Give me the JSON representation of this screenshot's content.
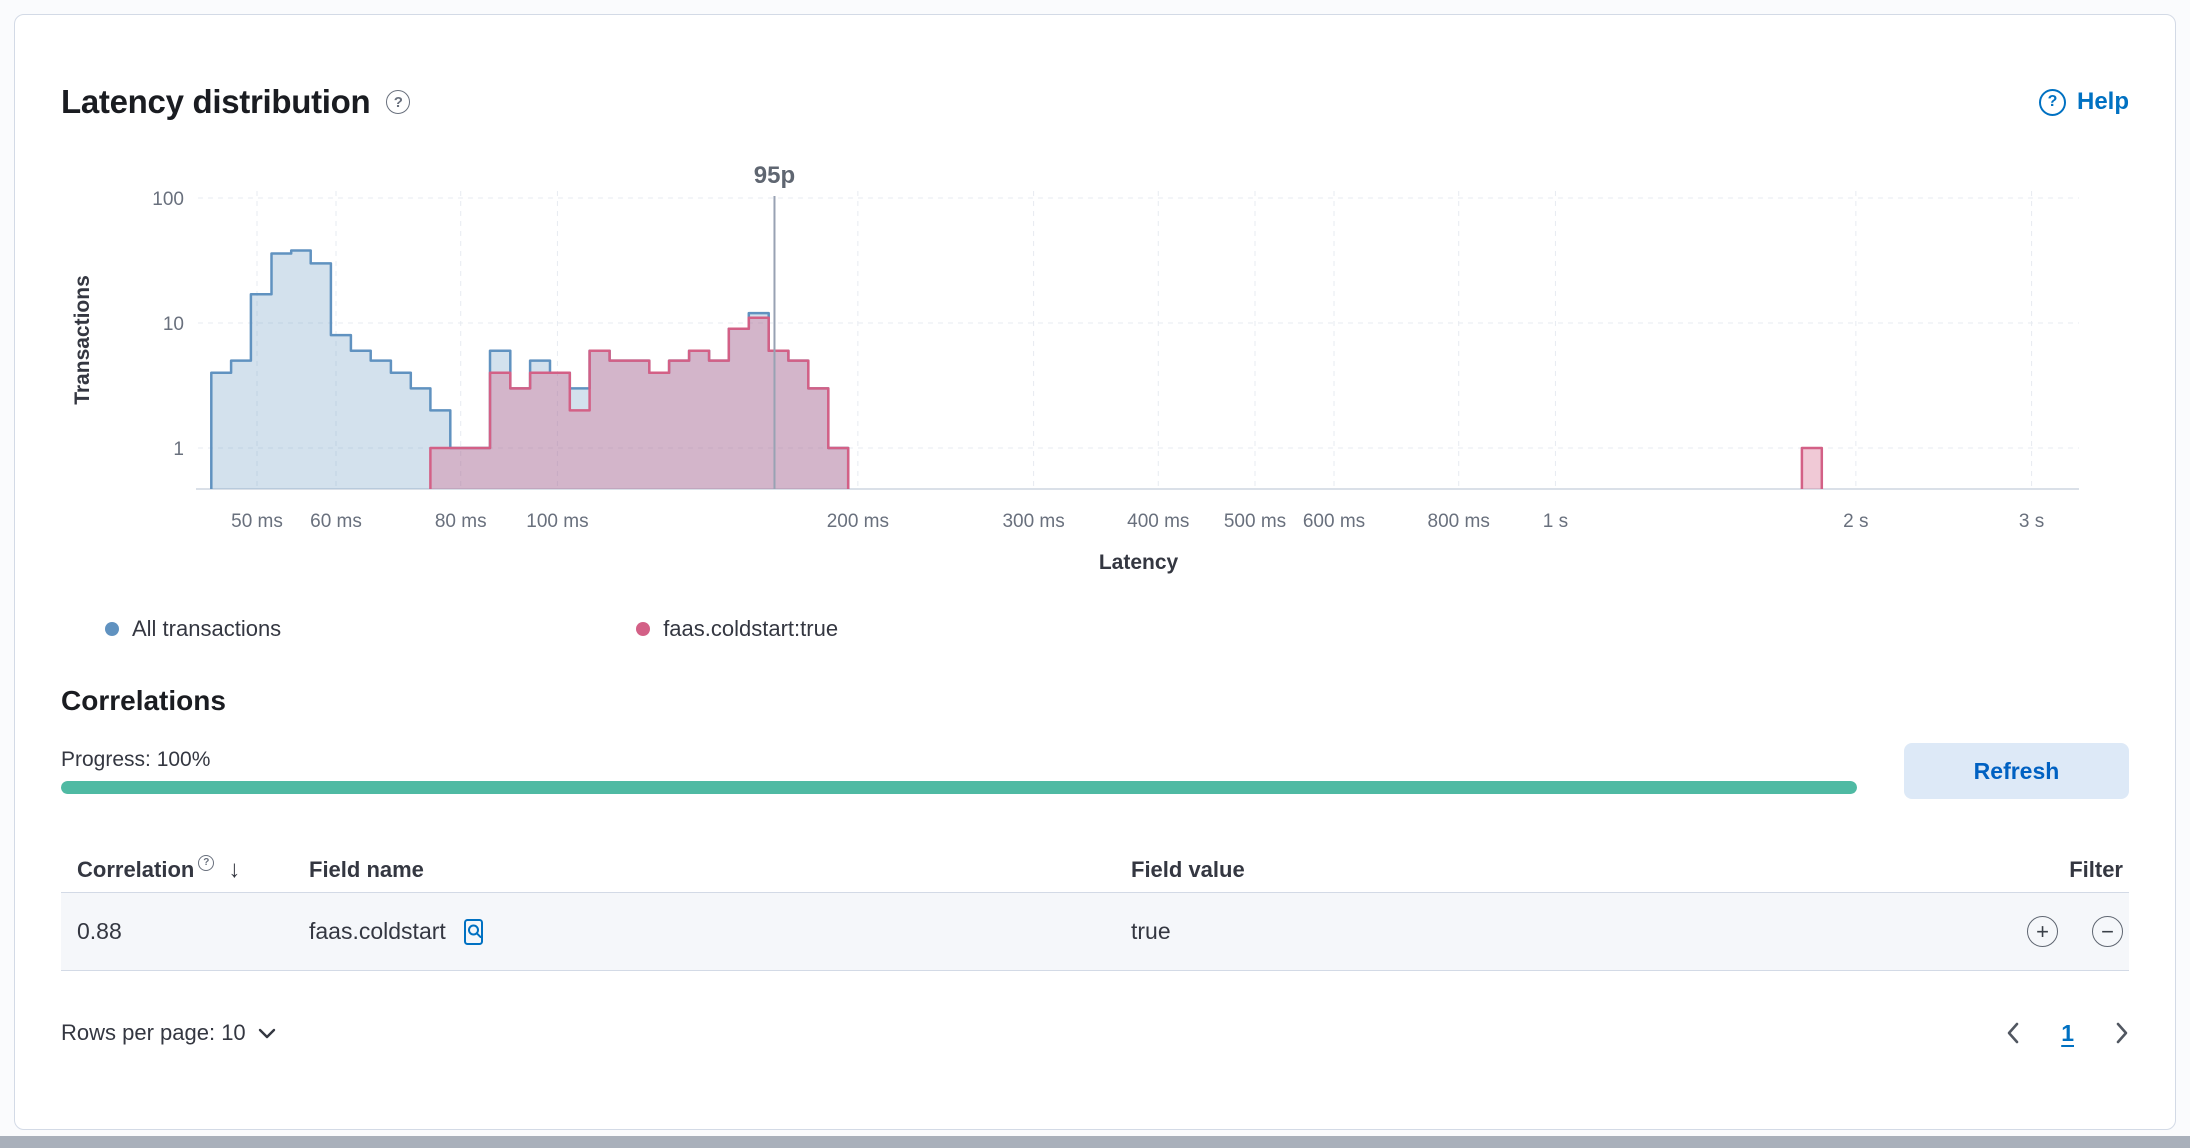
{
  "header": {
    "title": "Latency distribution",
    "help_label": "Help"
  },
  "chart_data": {
    "type": "histogram",
    "title": "Latency distribution",
    "xlabel": "Latency",
    "ylabel": "Transactions",
    "x_scale": "log",
    "y_scale": "log",
    "grid": true,
    "legend_position": "bottom",
    "y_ticks": [
      1,
      10,
      100
    ],
    "x_ticks": [
      {
        "ms": 50,
        "label": "50 ms"
      },
      {
        "ms": 60,
        "label": "60 ms"
      },
      {
        "ms": 80,
        "label": "80 ms"
      },
      {
        "ms": 100,
        "label": "100 ms"
      },
      {
        "ms": 200,
        "label": "200 ms"
      },
      {
        "ms": 300,
        "label": "300 ms"
      },
      {
        "ms": 400,
        "label": "400 ms"
      },
      {
        "ms": 500,
        "label": "500 ms"
      },
      {
        "ms": 600,
        "label": "600 ms"
      },
      {
        "ms": 800,
        "label": "800 ms"
      },
      {
        "ms": 1000,
        "label": "1 s"
      },
      {
        "ms": 2000,
        "label": "2 s"
      },
      {
        "ms": 3000,
        "label": "3 s"
      }
    ],
    "percentile_marker": {
      "label": "95p",
      "ms": 165
    },
    "series": [
      {
        "name": "All transactions",
        "color": "#6092C0",
        "fill": "rgba(96,146,192,0.28)",
        "bars": [
          [
            45,
            47.1,
            4
          ],
          [
            47.1,
            49.3,
            5
          ],
          [
            49.3,
            51.7,
            17
          ],
          [
            51.7,
            54.1,
            36
          ],
          [
            54.1,
            56.6,
            38
          ],
          [
            56.6,
            59.3,
            30
          ],
          [
            59.3,
            62.1,
            8
          ],
          [
            62.1,
            65,
            6
          ],
          [
            65,
            68.1,
            5
          ],
          [
            68.1,
            71.3,
            4
          ],
          [
            71.3,
            74.6,
            3
          ],
          [
            74.6,
            78.1,
            2
          ],
          [
            78.1,
            81.8,
            1
          ],
          [
            81.8,
            85.6,
            1
          ],
          [
            85.6,
            89.7,
            6
          ],
          [
            89.7,
            93.9,
            3
          ],
          [
            93.9,
            98.3,
            5
          ],
          [
            98.3,
            102.9,
            4
          ],
          [
            102.9,
            107.7,
            3
          ],
          [
            107.7,
            112.8,
            6
          ],
          [
            112.8,
            118.1,
            5
          ],
          [
            118.1,
            123.6,
            5
          ],
          [
            123.6,
            129.4,
            4
          ],
          [
            129.4,
            135.5,
            5
          ],
          [
            135.5,
            141.9,
            6
          ],
          [
            141.9,
            148.5,
            5
          ],
          [
            148.5,
            155.5,
            9
          ],
          [
            155.5,
            162.8,
            12
          ],
          [
            162.8,
            170.4,
            6
          ],
          [
            170.4,
            178.4,
            5
          ],
          [
            178.4,
            186.8,
            3
          ],
          [
            186.8,
            195.6,
            1
          ]
        ]
      },
      {
        "name": "faas.coldstart:true",
        "color": "#D36086",
        "fill": "rgba(211,96,134,0.34)",
        "bars": [
          [
            74.6,
            78.1,
            1
          ],
          [
            78.1,
            81.8,
            1
          ],
          [
            81.8,
            85.6,
            1
          ],
          [
            85.6,
            89.7,
            4
          ],
          [
            89.7,
            93.9,
            3
          ],
          [
            93.9,
            98.3,
            4
          ],
          [
            98.3,
            102.9,
            4
          ],
          [
            102.9,
            107.7,
            2
          ],
          [
            107.7,
            112.8,
            6
          ],
          [
            112.8,
            118.1,
            5
          ],
          [
            118.1,
            123.6,
            5
          ],
          [
            123.6,
            129.4,
            4
          ],
          [
            129.4,
            135.5,
            5
          ],
          [
            135.5,
            141.9,
            6
          ],
          [
            141.9,
            148.5,
            5
          ],
          [
            148.5,
            155.5,
            9
          ],
          [
            155.5,
            162.8,
            11
          ],
          [
            162.8,
            170.4,
            6
          ],
          [
            170.4,
            178.4,
            5
          ],
          [
            178.4,
            186.8,
            3
          ],
          [
            186.8,
            195.6,
            1
          ],
          [
            1766,
            1849,
            1
          ]
        ]
      }
    ]
  },
  "correlations": {
    "title": "Correlations",
    "progress_label": "Progress: 100%",
    "progress_pct": 100,
    "progress_color": "#4FBAA3",
    "refresh_label": "Refresh"
  },
  "table": {
    "headers": {
      "correlation": "Correlation",
      "field_name": "Field name",
      "field_value": "Field value",
      "filter": "Filter"
    },
    "rows": [
      {
        "correlation": "0.88",
        "field_name": "faas.coldstart",
        "field_value": "true"
      }
    ]
  },
  "footer": {
    "rows_per_page_label": "Rows per page: 10",
    "page": "1"
  },
  "colors": {
    "accent": "#0071C2",
    "series_blue": "#6092C0",
    "series_pink": "#D36086"
  },
  "icons": {
    "question": "?",
    "sort_desc": "↓",
    "plus": "+",
    "minus": "−"
  }
}
